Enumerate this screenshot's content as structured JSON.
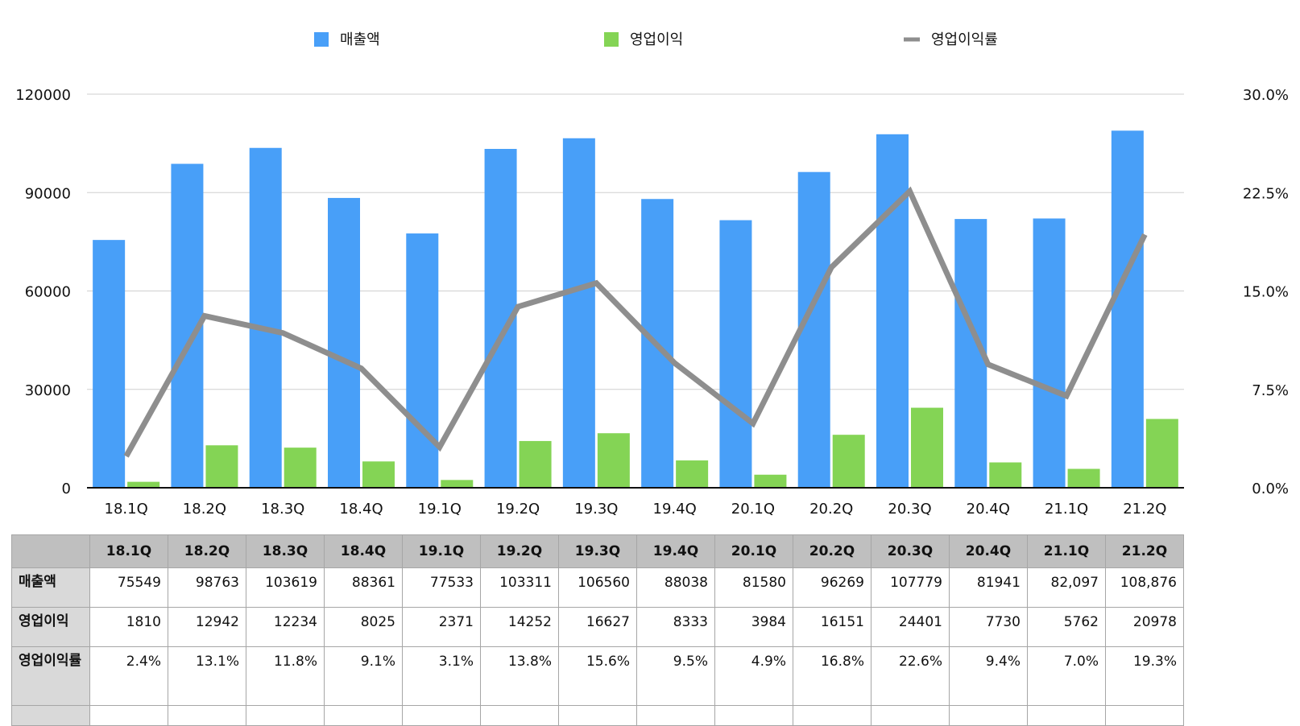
{
  "chart_data": {
    "type": "bar",
    "categories": [
      "18.1Q",
      "18.2Q",
      "18.3Q",
      "18.4Q",
      "19.1Q",
      "19.2Q",
      "19.3Q",
      "19.4Q",
      "20.1Q",
      "20.2Q",
      "20.3Q",
      "20.4Q",
      "21.1Q",
      "21.2Q"
    ],
    "series": [
      {
        "name": "매출액",
        "kind": "bar",
        "axis": "left",
        "color": "#489ff8",
        "values": [
          75549,
          98763,
          103619,
          88361,
          77533,
          103311,
          106560,
          88038,
          81580,
          96269,
          107779,
          81941,
          82097,
          108876
        ]
      },
      {
        "name": "영업이익",
        "kind": "bar",
        "axis": "left",
        "color": "#84d455",
        "values": [
          1810,
          12942,
          12234,
          8025,
          2371,
          14252,
          16627,
          8333,
          3984,
          16151,
          24401,
          7730,
          5762,
          20978
        ]
      },
      {
        "name": "영업이익률",
        "kind": "line",
        "axis": "right",
        "color": "#8e8e8e",
        "values": [
          2.4,
          13.1,
          11.8,
          9.1,
          3.1,
          13.8,
          15.6,
          9.5,
          4.9,
          16.8,
          22.6,
          9.4,
          7.0,
          19.3
        ]
      }
    ],
    "yleft": {
      "min": 0,
      "max": 120000,
      "ticks": [
        "0",
        "30000",
        "60000",
        "90000",
        "120000"
      ]
    },
    "yright": {
      "min": 0,
      "max": 30,
      "ticks": [
        "0.0%",
        "7.5%",
        "15.0%",
        "22.5%",
        "30.0%"
      ]
    },
    "grid": true,
    "legend": "top"
  },
  "table": {
    "columns": [
      "18.1Q",
      "18.2Q",
      "18.3Q",
      "18.4Q",
      "19.1Q",
      "19.2Q",
      "19.3Q",
      "19.4Q",
      "20.1Q",
      "20.2Q",
      "20.3Q",
      "20.4Q",
      "21.1Q",
      "21.2Q"
    ],
    "rows": [
      {
        "label": "매출액",
        "cells": [
          "75549",
          "98763",
          "103619",
          "88361",
          "77533",
          "103311",
          "106560",
          "88038",
          "81580",
          "96269",
          "107779",
          "81941",
          "82,097",
          "108,876"
        ]
      },
      {
        "label": "영업이익",
        "cells": [
          "1810",
          "12942",
          "12234",
          "8025",
          "2371",
          "14252",
          "16627",
          "8333",
          "3984",
          "16151",
          "24401",
          "7730",
          "5762",
          "20978"
        ]
      },
      {
        "label": "영업이익률",
        "cells": [
          "2.4%",
          "13.1%",
          "11.8%",
          "9.1%",
          "3.1%",
          "13.8%",
          "15.6%",
          "9.5%",
          "4.9%",
          "16.8%",
          "22.6%",
          "9.4%",
          "7.0%",
          "19.3%"
        ]
      }
    ]
  }
}
